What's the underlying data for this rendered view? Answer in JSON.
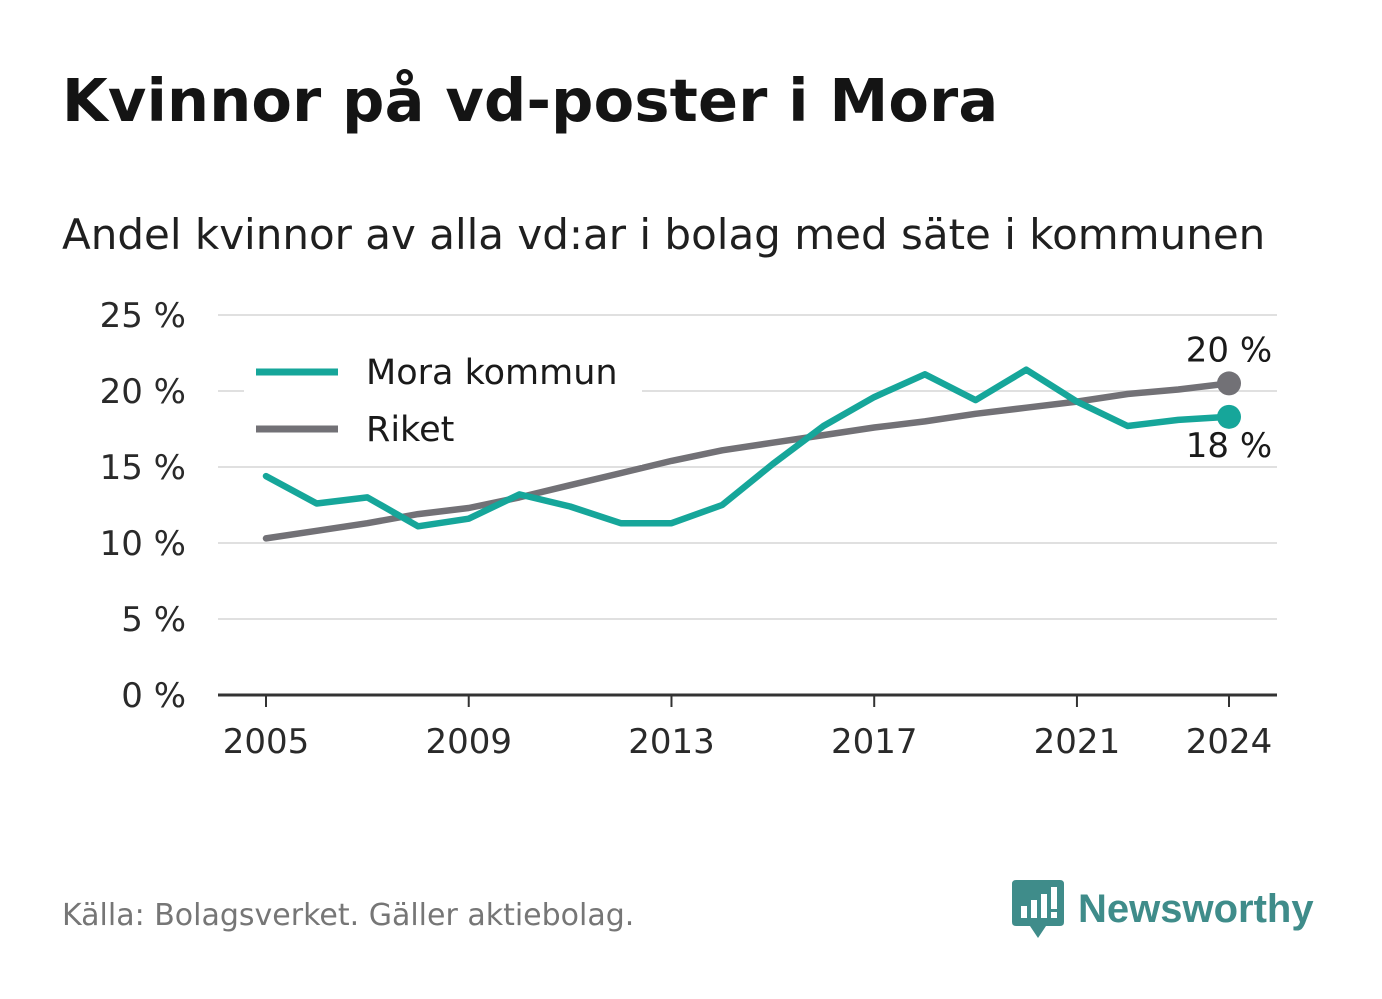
{
  "title": "Kvinnor på vd-poster i Mora",
  "subtitle": "Andel kvinnor av alla vd:ar i bolag med säte i kommunen",
  "footer": "Källa: Bolagsverket. Gäller aktiebolag.",
  "brand": {
    "name": "Newsworthy",
    "icon": "newsworthy-logo-icon",
    "color": "#3f8c8a"
  },
  "chart_data": {
    "type": "line",
    "title": "Kvinnor på vd-poster i Mora",
    "subtitle": "Andel kvinnor av alla vd:ar i bolag med säte i kommunen",
    "x": [
      2005,
      2006,
      2007,
      2008,
      2009,
      2010,
      2011,
      2012,
      2013,
      2014,
      2015,
      2016,
      2017,
      2018,
      2019,
      2020,
      2021,
      2022,
      2023,
      2024
    ],
    "x_ticks": [
      "2005",
      "2009",
      "2013",
      "2017",
      "2021",
      "2024"
    ],
    "y_ticks": [
      "0 %",
      "5 %",
      "10 %",
      "15 %",
      "20 %",
      "25 %"
    ],
    "ylim": [
      0,
      25
    ],
    "grid": true,
    "legend_position": "top-left",
    "series": [
      {
        "name": "Mora kommun",
        "color": "#16a69a",
        "values": [
          14.4,
          12.6,
          13.0,
          11.1,
          11.6,
          13.2,
          12.4,
          11.3,
          11.3,
          12.5,
          15.2,
          17.7,
          19.6,
          21.1,
          19.4,
          21.4,
          19.3,
          17.7,
          18.1,
          18.3
        ],
        "end_label": "18 %"
      },
      {
        "name": "Riket",
        "color": "#727176",
        "values": [
          10.3,
          10.8,
          11.3,
          11.9,
          12.3,
          13.0,
          13.8,
          14.6,
          15.4,
          16.1,
          16.6,
          17.1,
          17.6,
          18.0,
          18.5,
          18.9,
          19.3,
          19.8,
          20.1,
          20.5
        ],
        "end_label": "20 %"
      }
    ],
    "colors": {
      "grid": "#e0e0e0",
      "axis": "#333333",
      "tick_text": "#2a2a2a"
    }
  }
}
